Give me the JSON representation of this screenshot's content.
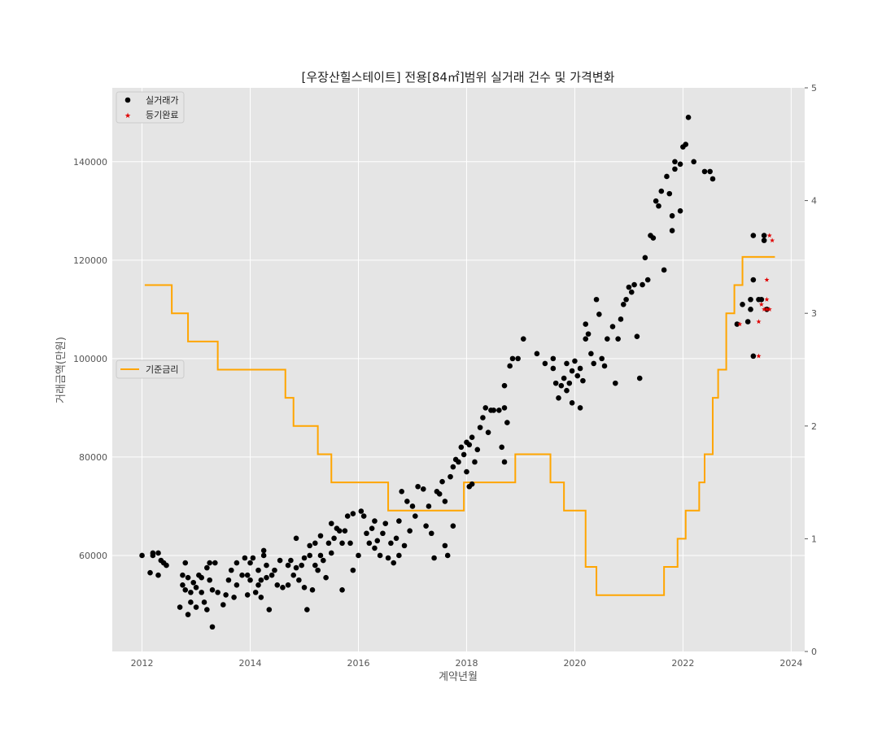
{
  "chart_data": {
    "type": "scatter",
    "title": "[우장산힐스테이트] 전용[84㎡]범위 실거래 건수 및 가격변화",
    "xlabel": "계약년월",
    "ylabel": "거래금액(만원)",
    "x_range": [
      2011.45,
      2024.25
    ],
    "x_ticks": [
      "2012",
      "2014",
      "2016",
      "2018",
      "2020",
      "2022",
      "2024"
    ],
    "y_range": [
      40500,
      155000
    ],
    "y_ticks": [
      "60000",
      "80000",
      "100000",
      "120000",
      "140000"
    ],
    "y2_range": [
      0,
      5
    ],
    "y2_ticks": [
      "0",
      "1",
      "2",
      "3",
      "4",
      "5"
    ],
    "grid": true,
    "legend_scatter": {
      "placement": "top-left",
      "entries": [
        "실거래가",
        "등기완료"
      ]
    },
    "legend_line": {
      "placement": "center-left",
      "entries": [
        "기준금리"
      ]
    },
    "colors": {
      "trade": "#000000",
      "registered": "#e00000",
      "rate": "#ffa500",
      "background": "#e5e5e5",
      "grid": "#ffffff"
    },
    "series": [
      {
        "name": "실거래가",
        "marker": "circle",
        "points": [
          [
            2012.0,
            60000
          ],
          [
            2012.15,
            56500
          ],
          [
            2012.2,
            60500
          ],
          [
            2012.2,
            60000
          ],
          [
            2012.3,
            56000
          ],
          [
            2012.3,
            60500
          ],
          [
            2012.35,
            59000
          ],
          [
            2012.4,
            58500
          ],
          [
            2012.45,
            58000
          ],
          [
            2012.7,
            49500
          ],
          [
            2012.75,
            56000
          ],
          [
            2012.75,
            54000
          ],
          [
            2012.8,
            53000
          ],
          [
            2012.8,
            58500
          ],
          [
            2012.85,
            48000
          ],
          [
            2012.85,
            55500
          ],
          [
            2012.9,
            50500
          ],
          [
            2012.9,
            52500
          ],
          [
            2012.95,
            54500
          ],
          [
            2013.0,
            49500
          ],
          [
            2013.0,
            53500
          ],
          [
            2013.05,
            56000
          ],
          [
            2013.1,
            55500
          ],
          [
            2013.1,
            52500
          ],
          [
            2013.15,
            50500
          ],
          [
            2013.2,
            49000
          ],
          [
            2013.2,
            57500
          ],
          [
            2013.25,
            58500
          ],
          [
            2013.25,
            55000
          ],
          [
            2013.3,
            45500
          ],
          [
            2013.3,
            53000
          ],
          [
            2013.35,
            58500
          ],
          [
            2013.4,
            52500
          ],
          [
            2013.5,
            50000
          ],
          [
            2013.55,
            52000
          ],
          [
            2013.6,
            55000
          ],
          [
            2013.65,
            57000
          ],
          [
            2013.7,
            51500
          ],
          [
            2013.75,
            54000
          ],
          [
            2013.75,
            58500
          ],
          [
            2013.85,
            56000
          ],
          [
            2013.9,
            59500
          ],
          [
            2013.95,
            52000
          ],
          [
            2013.95,
            56000
          ],
          [
            2014.0,
            55000
          ],
          [
            2014.0,
            58500
          ],
          [
            2014.05,
            59500
          ],
          [
            2014.1,
            52500
          ],
          [
            2014.15,
            54000
          ],
          [
            2014.15,
            57000
          ],
          [
            2014.2,
            51500
          ],
          [
            2014.2,
            55000
          ],
          [
            2014.25,
            60000
          ],
          [
            2014.25,
            61000
          ],
          [
            2014.3,
            55500
          ],
          [
            2014.3,
            58000
          ],
          [
            2014.4,
            56000
          ],
          [
            2014.35,
            49000
          ],
          [
            2014.45,
            57000
          ],
          [
            2014.5,
            54000
          ],
          [
            2014.55,
            59000
          ],
          [
            2014.6,
            53500
          ],
          [
            2014.7,
            54000
          ],
          [
            2014.7,
            58000
          ],
          [
            2014.75,
            59000
          ],
          [
            2014.8,
            56000
          ],
          [
            2014.85,
            57500
          ],
          [
            2014.85,
            63500
          ],
          [
            2014.9,
            55000
          ],
          [
            2014.95,
            58000
          ],
          [
            2015.0,
            53500
          ],
          [
            2015.0,
            59500
          ],
          [
            2015.05,
            49000
          ],
          [
            2015.1,
            60000
          ],
          [
            2015.1,
            62000
          ],
          [
            2015.15,
            53000
          ],
          [
            2015.2,
            58000
          ],
          [
            2015.2,
            62500
          ],
          [
            2015.25,
            57000
          ],
          [
            2015.3,
            60000
          ],
          [
            2015.3,
            64000
          ],
          [
            2015.35,
            59000
          ],
          [
            2015.4,
            55500
          ],
          [
            2015.45,
            62500
          ],
          [
            2015.5,
            60500
          ],
          [
            2015.5,
            66500
          ],
          [
            2015.55,
            63500
          ],
          [
            2015.6,
            65500
          ],
          [
            2015.65,
            65000
          ],
          [
            2015.7,
            62500
          ],
          [
            2015.7,
            53000
          ],
          [
            2015.75,
            65000
          ],
          [
            2015.8,
            68000
          ],
          [
            2015.85,
            62500
          ],
          [
            2015.9,
            68500
          ],
          [
            2015.9,
            57000
          ],
          [
            2016.0,
            60000
          ],
          [
            2016.05,
            69000
          ],
          [
            2016.1,
            68000
          ],
          [
            2016.15,
            64500
          ],
          [
            2016.2,
            62500
          ],
          [
            2016.25,
            65500
          ],
          [
            2016.3,
            61500
          ],
          [
            2016.3,
            67000
          ],
          [
            2016.35,
            63000
          ],
          [
            2016.4,
            60000
          ],
          [
            2016.45,
            64500
          ],
          [
            2016.5,
            66500
          ],
          [
            2016.55,
            59500
          ],
          [
            2016.6,
            62500
          ],
          [
            2016.65,
            58500
          ],
          [
            2016.7,
            63500
          ],
          [
            2016.75,
            67000
          ],
          [
            2016.75,
            60000
          ],
          [
            2016.8,
            73000
          ],
          [
            2016.85,
            62000
          ],
          [
            2016.9,
            71000
          ],
          [
            2016.95,
            65000
          ],
          [
            2017.0,
            70000
          ],
          [
            2017.05,
            68000
          ],
          [
            2017.1,
            74000
          ],
          [
            2017.2,
            73500
          ],
          [
            2017.25,
            66000
          ],
          [
            2017.3,
            70000
          ],
          [
            2017.35,
            64500
          ],
          [
            2017.4,
            59500
          ],
          [
            2017.45,
            73000
          ],
          [
            2017.5,
            72500
          ],
          [
            2017.55,
            75000
          ],
          [
            2017.6,
            62000
          ],
          [
            2017.6,
            71000
          ],
          [
            2017.65,
            60000
          ],
          [
            2017.7,
            76000
          ],
          [
            2017.75,
            78000
          ],
          [
            2017.75,
            66000
          ],
          [
            2017.8,
            79500
          ],
          [
            2017.85,
            79000
          ],
          [
            2017.9,
            82000
          ],
          [
            2017.95,
            80500
          ],
          [
            2018.0,
            83000
          ],
          [
            2018.05,
            82500
          ],
          [
            2018.1,
            84000
          ],
          [
            2018.0,
            77000
          ],
          [
            2018.05,
            74000
          ],
          [
            2018.1,
            74500
          ],
          [
            2018.15,
            79000
          ],
          [
            2018.2,
            81500
          ],
          [
            2018.25,
            86000
          ],
          [
            2018.3,
            88000
          ],
          [
            2018.35,
            90000
          ],
          [
            2018.4,
            85000
          ],
          [
            2018.45,
            89500
          ],
          [
            2018.5,
            89500
          ],
          [
            2018.6,
            89500
          ],
          [
            2018.65,
            82000
          ],
          [
            2018.7,
            90000
          ],
          [
            2018.7,
            94500
          ],
          [
            2018.7,
            79000
          ],
          [
            2018.75,
            87000
          ],
          [
            2018.8,
            98500
          ],
          [
            2018.85,
            100000
          ],
          [
            2018.95,
            100000
          ],
          [
            2019.05,
            104000
          ],
          [
            2019.3,
            101000
          ],
          [
            2019.45,
            99000
          ],
          [
            2019.6,
            100000
          ],
          [
            2019.6,
            98000
          ],
          [
            2019.65,
            95000
          ],
          [
            2019.7,
            92000
          ],
          [
            2019.75,
            94500
          ],
          [
            2019.8,
            96000
          ],
          [
            2019.85,
            99000
          ],
          [
            2019.85,
            93500
          ],
          [
            2019.9,
            95000
          ],
          [
            2019.95,
            97500
          ],
          [
            2019.95,
            91000
          ],
          [
            2020.0,
            99500
          ],
          [
            2020.05,
            96500
          ],
          [
            2020.1,
            90000
          ],
          [
            2020.1,
            98000
          ],
          [
            2020.15,
            95500
          ],
          [
            2020.2,
            104000
          ],
          [
            2020.2,
            107000
          ],
          [
            2020.25,
            105000
          ],
          [
            2020.3,
            101000
          ],
          [
            2020.35,
            99000
          ],
          [
            2020.4,
            112000
          ],
          [
            2020.45,
            109000
          ],
          [
            2020.5,
            100000
          ],
          [
            2020.55,
            98500
          ],
          [
            2020.6,
            104000
          ],
          [
            2020.7,
            106500
          ],
          [
            2020.75,
            95000
          ],
          [
            2020.8,
            104000
          ],
          [
            2020.85,
            108000
          ],
          [
            2020.9,
            111000
          ],
          [
            2020.95,
            112000
          ],
          [
            2021.0,
            114500
          ],
          [
            2021.05,
            113500
          ],
          [
            2021.1,
            115000
          ],
          [
            2021.15,
            104500
          ],
          [
            2021.2,
            96000
          ],
          [
            2021.25,
            115000
          ],
          [
            2021.3,
            120500
          ],
          [
            2021.35,
            116000
          ],
          [
            2021.4,
            125000
          ],
          [
            2021.45,
            124500
          ],
          [
            2021.5,
            132000
          ],
          [
            2021.55,
            131000
          ],
          [
            2021.6,
            134000
          ],
          [
            2021.65,
            118000
          ],
          [
            2021.7,
            137000
          ],
          [
            2021.75,
            133500
          ],
          [
            2021.8,
            129000
          ],
          [
            2021.8,
            126000
          ],
          [
            2021.85,
            140000
          ],
          [
            2021.85,
            138500
          ],
          [
            2021.95,
            139500
          ],
          [
            2021.95,
            130000
          ],
          [
            2022.0,
            143000
          ],
          [
            2022.05,
            143500
          ],
          [
            2022.1,
            149000
          ],
          [
            2022.2,
            140000
          ],
          [
            2022.4,
            138000
          ],
          [
            2022.5,
            138000
          ],
          [
            2022.55,
            136500
          ],
          [
            2023.0,
            107000
          ],
          [
            2023.1,
            111000
          ],
          [
            2023.2,
            107500
          ],
          [
            2023.25,
            112000
          ],
          [
            2023.25,
            110000
          ],
          [
            2023.3,
            116000
          ],
          [
            2023.3,
            100500
          ],
          [
            2023.3,
            125000
          ],
          [
            2023.4,
            112000
          ],
          [
            2023.45,
            112000
          ],
          [
            2023.5,
            124000
          ],
          [
            2023.5,
            125000
          ],
          [
            2023.55,
            110000
          ]
        ]
      },
      {
        "name": "등기완료",
        "marker": "star",
        "points": [
          [
            2023.05,
            107000
          ],
          [
            2023.4,
            107500
          ],
          [
            2023.45,
            111000
          ],
          [
            2023.5,
            110000
          ],
          [
            2023.55,
            112000
          ],
          [
            2023.55,
            116000
          ],
          [
            2023.55,
            110000
          ],
          [
            2023.6,
            110000
          ],
          [
            2023.6,
            125000
          ],
          [
            2023.65,
            124000
          ],
          [
            2023.4,
            100500
          ]
        ]
      },
      {
        "name": "기준금리",
        "type": "step",
        "axis": "right",
        "points": [
          [
            2012.05,
            3.25
          ],
          [
            2012.55,
            3.0
          ],
          [
            2012.85,
            2.75
          ],
          [
            2013.4,
            2.5
          ],
          [
            2014.65,
            2.25
          ],
          [
            2014.8,
            2.0
          ],
          [
            2015.25,
            1.75
          ],
          [
            2015.5,
            1.5
          ],
          [
            2016.55,
            1.25
          ],
          [
            2017.95,
            1.5
          ],
          [
            2018.9,
            1.75
          ],
          [
            2019.55,
            1.5
          ],
          [
            2019.8,
            1.25
          ],
          [
            2020.2,
            0.75
          ],
          [
            2020.4,
            0.5
          ],
          [
            2021.65,
            0.75
          ],
          [
            2021.9,
            1.0
          ],
          [
            2022.05,
            1.25
          ],
          [
            2022.3,
            1.5
          ],
          [
            2022.4,
            1.75
          ],
          [
            2022.55,
            2.25
          ],
          [
            2022.65,
            2.5
          ],
          [
            2022.8,
            3.0
          ],
          [
            2022.95,
            3.25
          ],
          [
            2023.1,
            3.5
          ],
          [
            2023.7,
            3.5
          ]
        ]
      }
    ]
  }
}
